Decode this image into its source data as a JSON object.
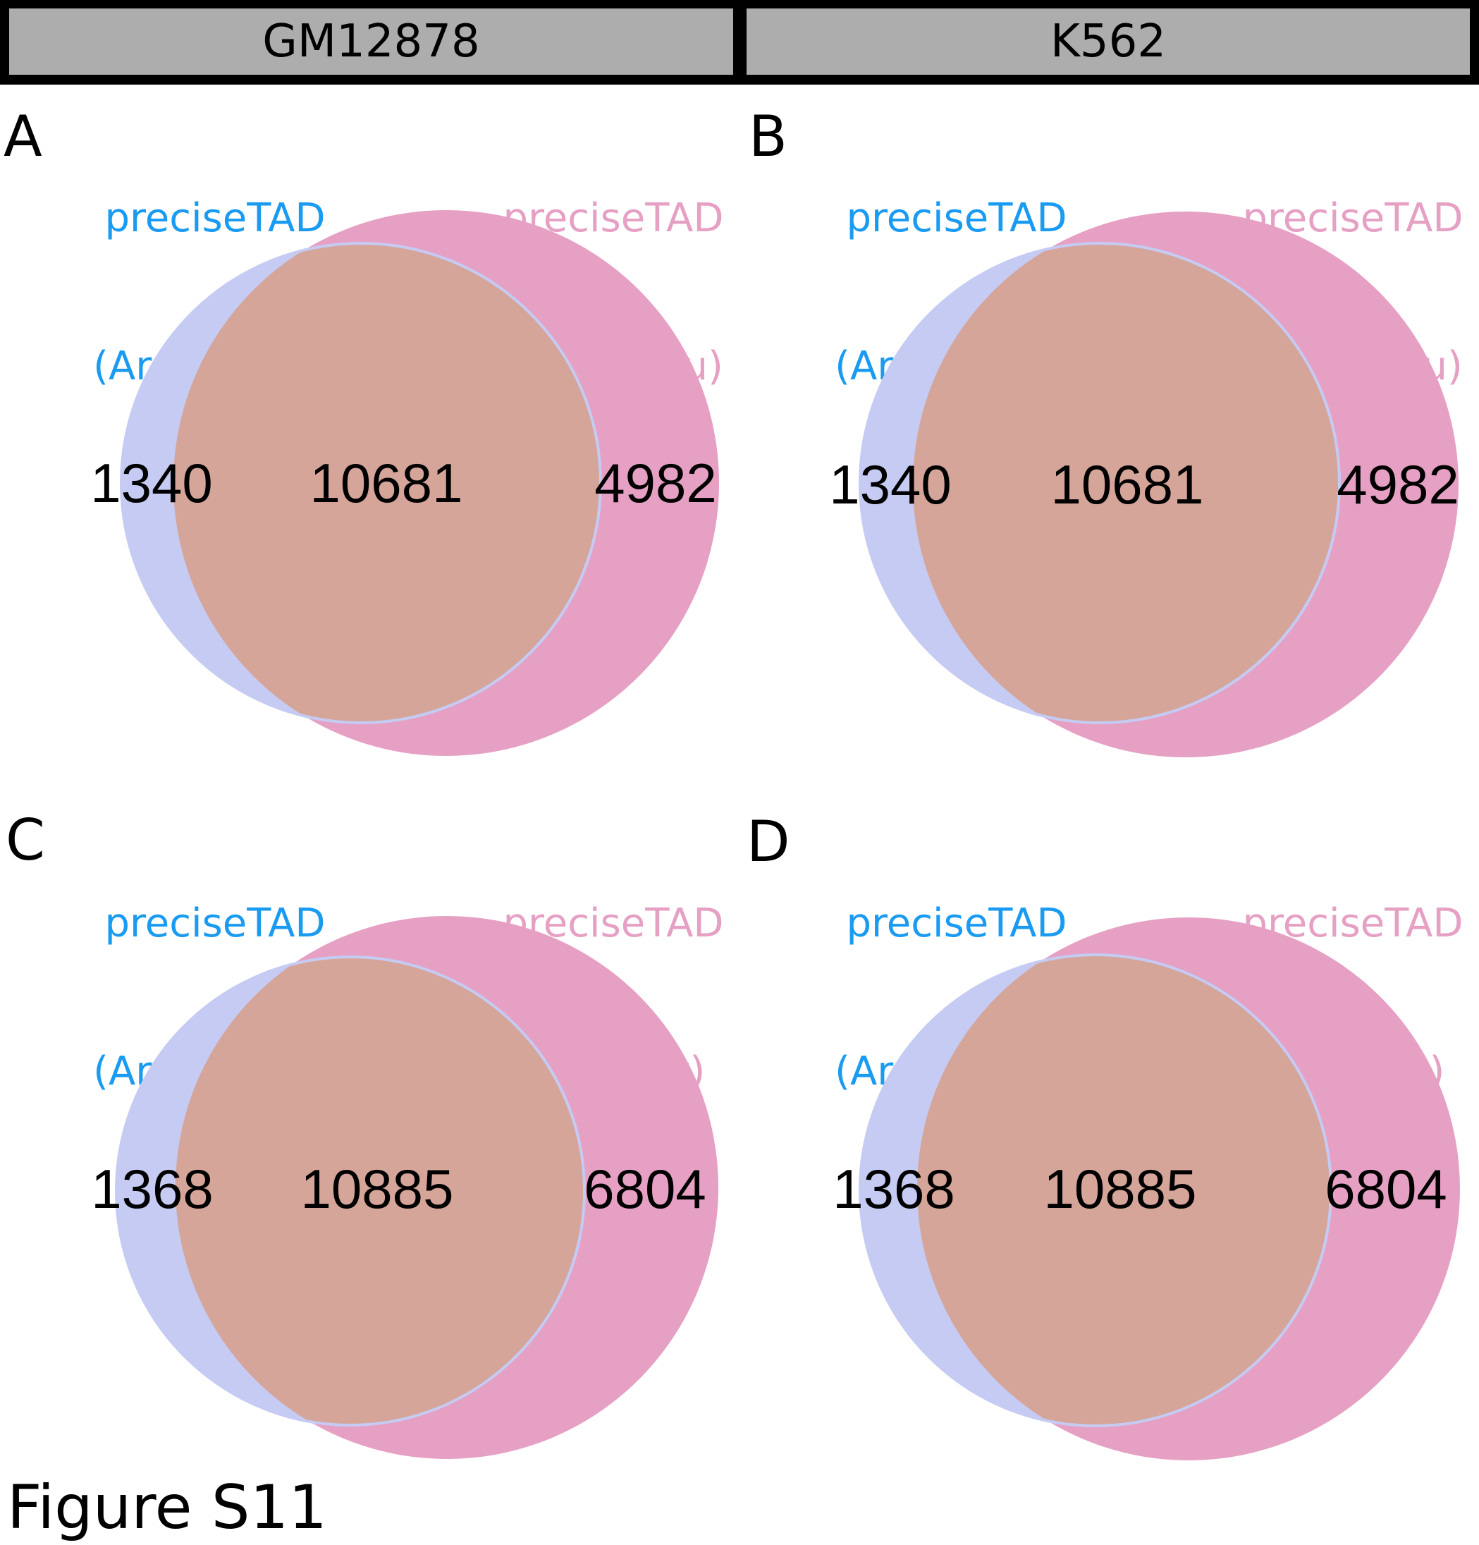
{
  "header": {
    "left": "GM12878",
    "right": "K562"
  },
  "colors": {
    "set_a": "#c5cbf3",
    "set_b": "#e6a0c4",
    "overlap": "#d5a59a",
    "label_a": "#1a9bf2",
    "label_b": "#e6a0c4"
  },
  "panels": [
    {
      "letter": "A",
      "set_a": {
        "line1": "preciseTAD",
        "line2": "(Arrowhead)"
      },
      "set_b": {
        "line1": "preciseTAD",
        "line2": "(Peakachu)"
      },
      "only_a": "1340",
      "both": "10681",
      "only_b": "4982"
    },
    {
      "letter": "B",
      "set_a": {
        "line1": "preciseTAD",
        "line2": "(Arrowhead)"
      },
      "set_b": {
        "line1": "preciseTAD",
        "line2": "(Peakachu)"
      },
      "only_a": "1340",
      "both": "10681",
      "only_b": "4982"
    },
    {
      "letter": "C",
      "set_a": {
        "line1": "preciseTAD",
        "line2": "(Arrowhead)"
      },
      "set_b": {
        "line1": "preciseTAD",
        "line2": "(Grubert)"
      },
      "only_a": "1368",
      "both": "10885",
      "only_b": "6804"
    },
    {
      "letter": "D",
      "set_a": {
        "line1": "preciseTAD",
        "line2": "(Arrowhead)"
      },
      "set_b": {
        "line1": "preciseTAD",
        "line2": "(Grubert)"
      },
      "only_a": "1368",
      "both": "10885",
      "only_b": "6804"
    }
  ],
  "caption": "Figure S11"
}
